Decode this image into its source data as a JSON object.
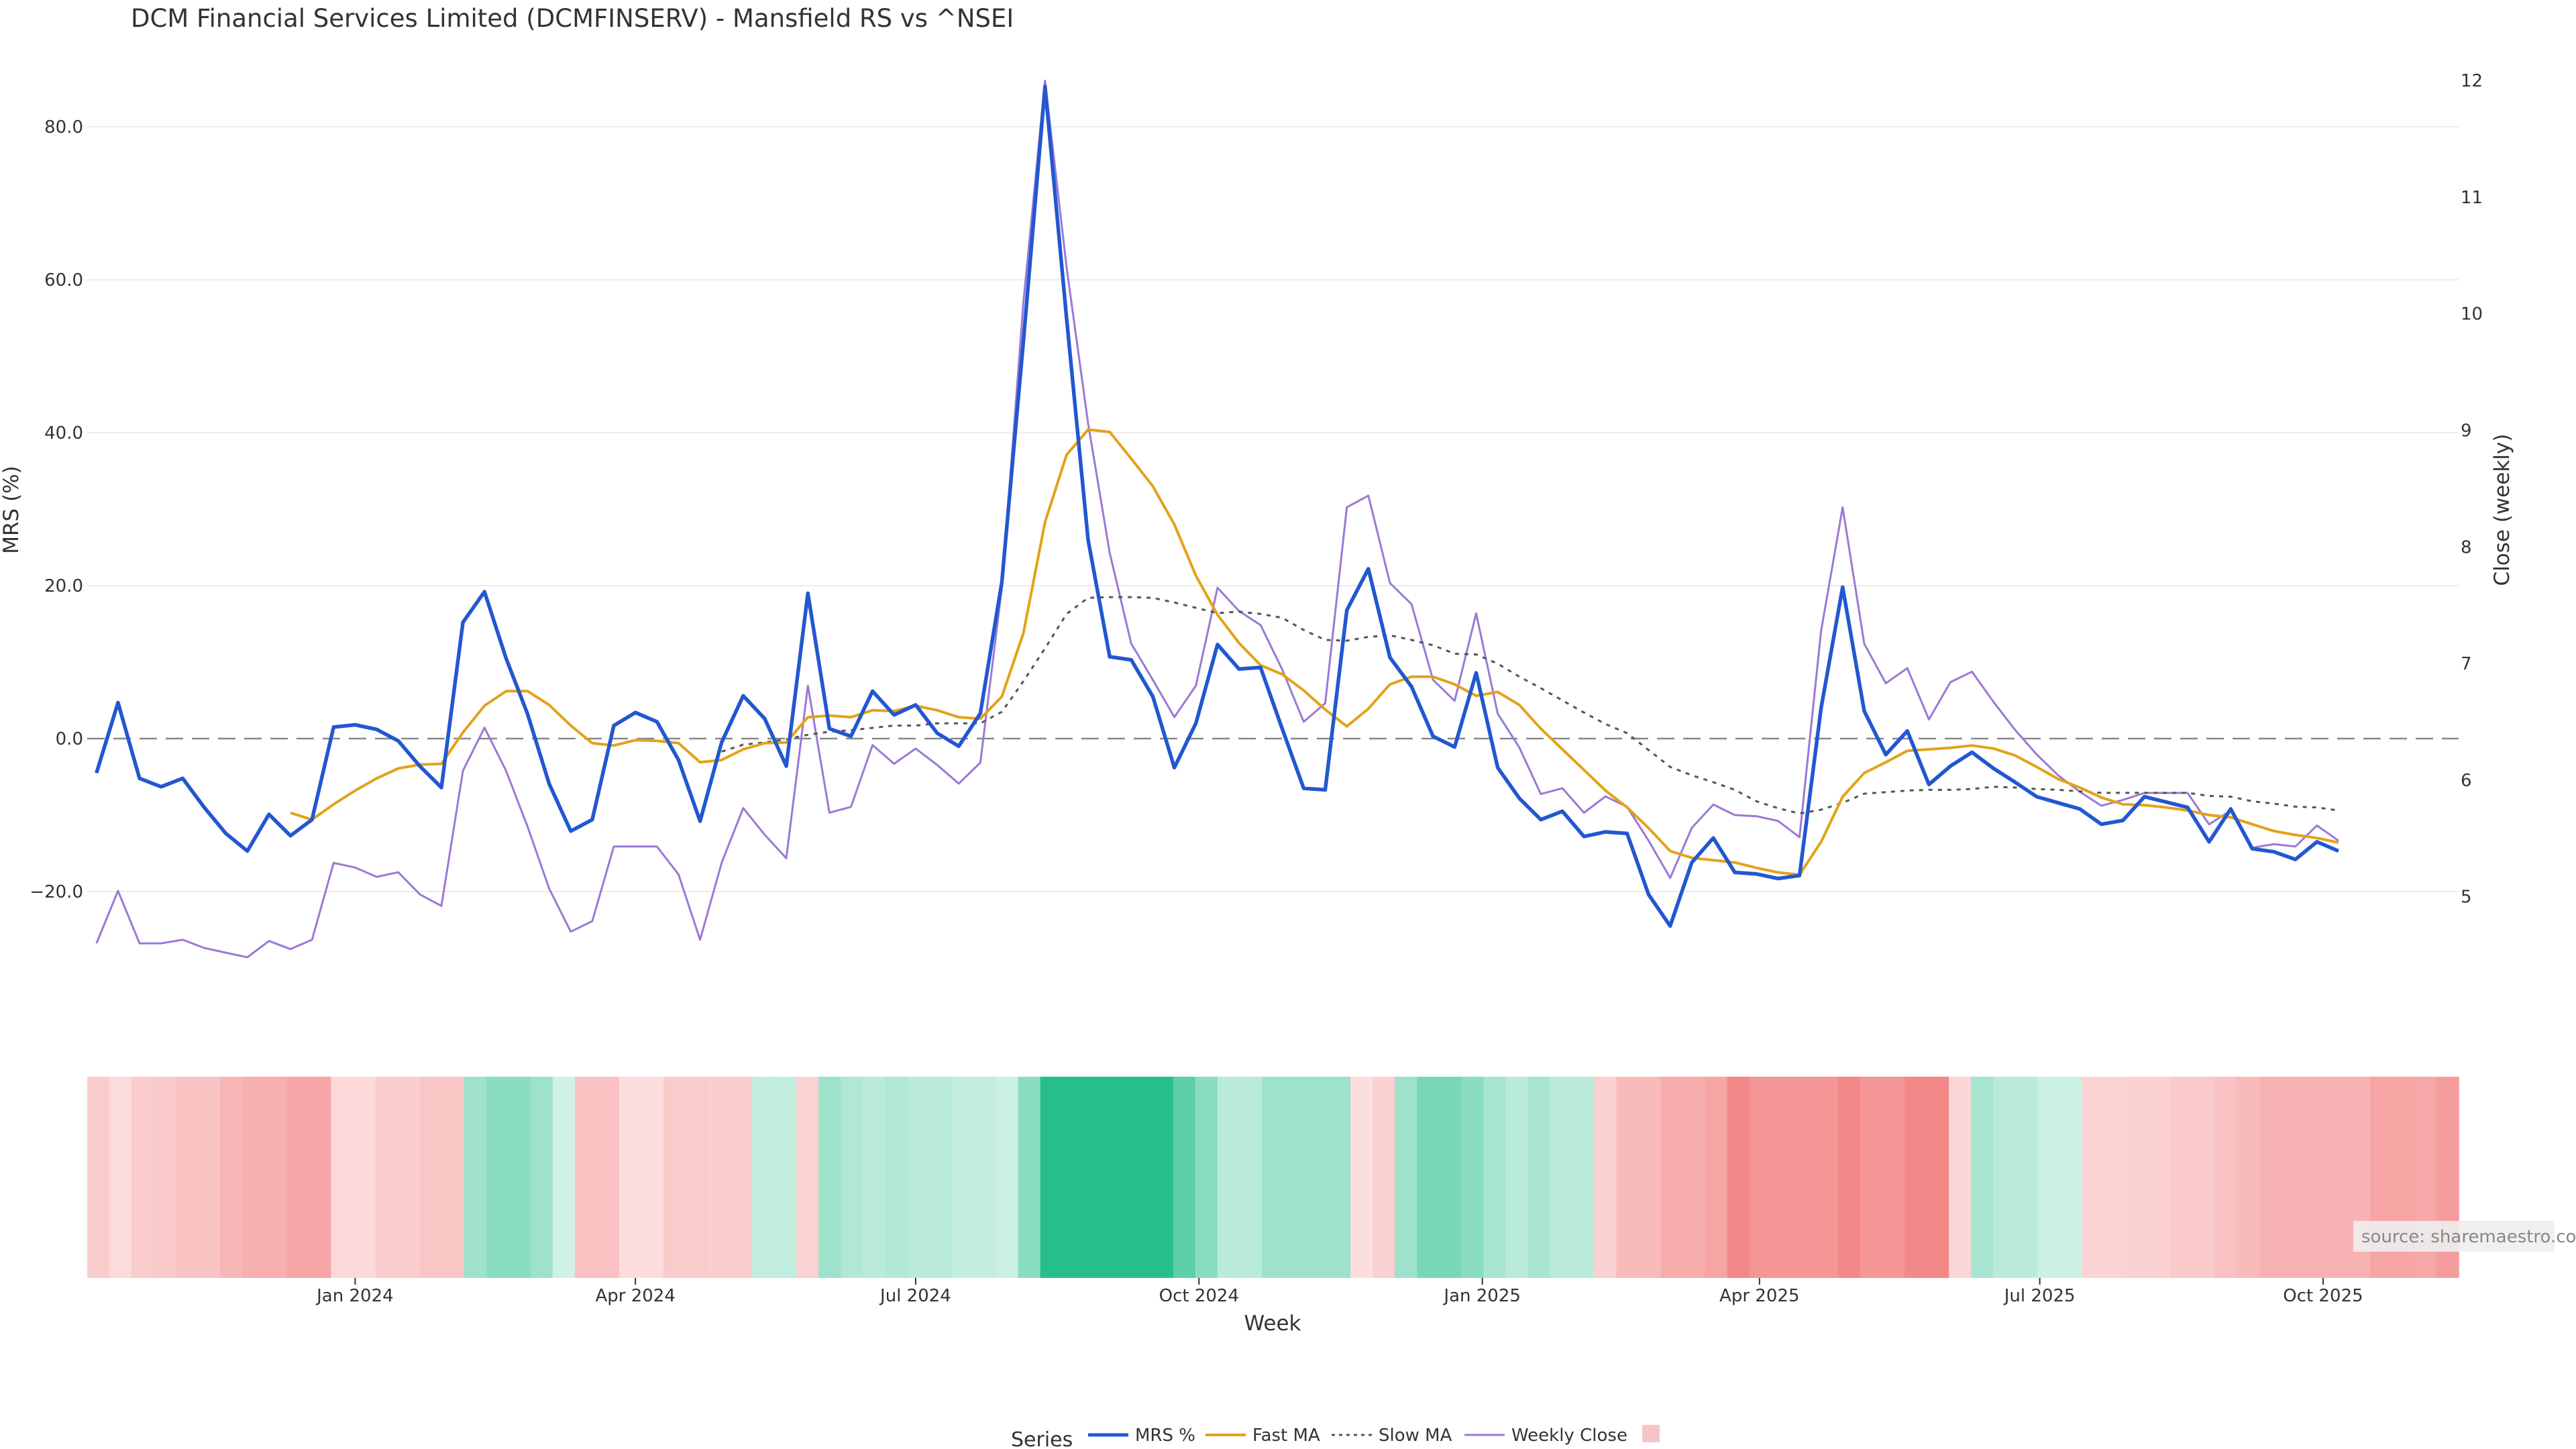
{
  "chart_data": {
    "type": "line",
    "title": "DCM Financial Services Limited (DCMFINSERV) - Mansfield RS vs ^NSEI",
    "xlabel": "Week",
    "ylabel": "MRS (%)",
    "y2label": "Close (weekly)",
    "ylim": [
      -35,
      90
    ],
    "y2lim": [
      4.06,
      12.26
    ],
    "xlim": [
      "2023-10-06",
      "2025-11-14"
    ],
    "x_ticks": [
      {
        "date": "2024-01-01",
        "label": "Jan 2024"
      },
      {
        "date": "2024-04-01",
        "label": "Apr 2024"
      },
      {
        "date": "2024-07-01",
        "label": "Jul 2024"
      },
      {
        "date": "2024-10-01",
        "label": "Oct 2024"
      },
      {
        "date": "2025-01-01",
        "label": "Jan 2025"
      },
      {
        "date": "2025-04-01",
        "label": "Apr 2025"
      },
      {
        "date": "2025-07-01",
        "label": "Jul 2025"
      },
      {
        "date": "2025-10-01",
        "label": "Oct 2025"
      }
    ],
    "y_ticks": [
      -20,
      0,
      20,
      40,
      60,
      80
    ],
    "y_tick_labels": [
      "−20.0",
      "0.0",
      "20.0",
      "40.0",
      "60.0",
      "80.0"
    ],
    "y2_ticks": [
      5,
      6,
      7,
      8,
      9,
      10,
      11,
      12
    ],
    "y2_tick_labels": [
      "5",
      "6",
      "7",
      "8",
      "9",
      "10",
      "11",
      "12"
    ],
    "start_date": "2023-10-09",
    "grid": true,
    "zero_line": true,
    "legend_title": "Series",
    "legend_placement": "bottom",
    "colors": {
      "mrs": "#2257d0",
      "fast_ma": "#e3a21a",
      "slow_ma": "#555555",
      "weekly_close": "#9b79d6",
      "zero_line": "#888888",
      "grid": "#e6e6e6",
      "legend_swatch": "#f6c6c6",
      "heat_pos": "#26bf8c",
      "heat_neg": "#ee5555"
    },
    "series": [
      {
        "name": "MRS %",
        "values": [
          -4.5,
          4.7,
          -5.2,
          -6.3,
          -5.2,
          -9.0,
          -12.4,
          -14.7,
          -9.9,
          -12.7,
          -10.6,
          1.5,
          1.8,
          1.2,
          -0.3,
          -3.6,
          -6.4,
          15.2,
          19.2,
          10.5,
          3.2,
          -5.9,
          -12.1,
          -10.6,
          1.7,
          3.4,
          2.2,
          -2.8,
          -10.8,
          -0.5,
          5.6,
          2.6,
          -3.6,
          19.0,
          1.3,
          0.3,
          6.2,
          3.1,
          4.4,
          0.7,
          -1.0,
          3.3,
          20.5,
          52.0,
          85.3,
          55.0,
          26.0,
          10.7,
          10.3,
          5.5,
          -3.8,
          2.0,
          12.3,
          9.1,
          9.3,
          1.3,
          -6.5,
          -6.7,
          16.8,
          22.2,
          10.6,
          6.8,
          0.3,
          -1.1,
          8.6,
          -3.8,
          -7.8,
          -10.6,
          -9.5,
          -12.8,
          -12.2,
          -12.4,
          -20.4,
          -24.5,
          -16.2,
          -13.0,
          -17.5,
          -17.7,
          -18.3,
          -17.9,
          4.0,
          19.8,
          3.6,
          -2.1,
          1.0,
          -6.0,
          -3.6,
          -1.8,
          -3.9,
          -5.7,
          -7.6,
          -8.4,
          -9.2,
          -11.2,
          -10.7,
          -7.6,
          -8.3,
          -9.0,
          -13.5,
          -9.2,
          -14.4,
          -14.8,
          -15.8,
          -13.5,
          -14.7
        ]
      },
      {
        "name": "Fast MA",
        "values": [
          null,
          null,
          null,
          null,
          null,
          null,
          null,
          null,
          null,
          -9.7,
          -10.6,
          -8.6,
          -6.8,
          -5.2,
          -3.9,
          -3.4,
          -3.3,
          0.8,
          4.3,
          6.2,
          6.2,
          4.4,
          1.7,
          -0.6,
          -0.9,
          -0.2,
          -0.3,
          -0.6,
          -3.1,
          -2.8,
          -1.4,
          -0.6,
          -0.5,
          2.8,
          3.0,
          2.8,
          3.7,
          3.6,
          4.3,
          3.7,
          2.8,
          2.6,
          5.5,
          13.8,
          28.3,
          37.1,
          40.4,
          40.1,
          36.6,
          33.0,
          28.0,
          21.3,
          16.2,
          12.5,
          9.6,
          8.4,
          6.3,
          3.8,
          1.6,
          3.9,
          7.1,
          8.1,
          8.1,
          7.1,
          5.6,
          6.1,
          4.4,
          1.3,
          -1.4,
          -4.1,
          -6.8,
          -9.0,
          -11.7,
          -14.7,
          -15.6,
          -15.9,
          -16.2,
          -16.9,
          -17.5,
          -17.8,
          -13.5,
          -7.6,
          -4.5,
          -3.1,
          -1.6,
          -1.4,
          -1.2,
          -0.9,
          -1.3,
          -2.2,
          -3.7,
          -5.3,
          -6.4,
          -7.7,
          -8.6,
          -8.7,
          -9.0,
          -9.4,
          -10.0,
          -10.3,
          -11.2,
          -12.1,
          -12.6,
          -13.0,
          -13.6
        ]
      },
      {
        "name": "Slow MA",
        "values": [
          null,
          null,
          null,
          null,
          null,
          null,
          null,
          null,
          null,
          null,
          null,
          null,
          null,
          null,
          null,
          null,
          null,
          null,
          null,
          null,
          null,
          null,
          null,
          null,
          null,
          null,
          null,
          null,
          null,
          -1.7,
          -0.8,
          -0.5,
          -0.1,
          0.5,
          0.9,
          1.1,
          1.4,
          1.7,
          1.7,
          2.0,
          2.0,
          2.0,
          3.5,
          7.5,
          11.8,
          16.3,
          18.4,
          18.5,
          18.5,
          18.4,
          17.8,
          17.1,
          16.4,
          16.6,
          16.3,
          15.8,
          14.2,
          12.9,
          12.8,
          13.3,
          13.5,
          12.9,
          12.2,
          11.1,
          11.0,
          9.8,
          8.1,
          6.6,
          5.0,
          3.4,
          1.9,
          0.7,
          -1.5,
          -3.7,
          -4.8,
          -5.7,
          -6.7,
          -8.2,
          -9.1,
          -9.8,
          -9.3,
          -8.4,
          -7.2,
          -7.0,
          -6.8,
          -6.7,
          -6.7,
          -6.6,
          -6.3,
          -6.4,
          -6.6,
          -6.7,
          -6.9,
          -7.1,
          -7.1,
          -7.1,
          -7.1,
          -7.1,
          -7.5,
          -7.6,
          -8.2,
          -8.5,
          -8.9,
          -9.0,
          -9.4
        ]
      },
      {
        "name": "Weekly Close",
        "values": [
          4.6,
          5.05,
          4.6,
          4.6,
          4.63,
          4.56,
          4.52,
          4.48,
          4.62,
          4.55,
          4.63,
          5.29,
          5.25,
          5.17,
          5.21,
          5.02,
          4.92,
          6.08,
          6.45,
          6.08,
          5.6,
          5.07,
          4.7,
          4.79,
          5.43,
          5.43,
          5.43,
          5.19,
          4.63,
          5.29,
          5.76,
          5.53,
          5.33,
          6.81,
          5.72,
          5.77,
          6.3,
          6.14,
          6.27,
          6.13,
          5.97,
          6.15,
          7.65,
          10.1,
          12.0,
          10.4,
          9.06,
          7.95,
          7.17,
          6.86,
          6.54,
          6.81,
          7.65,
          7.45,
          7.33,
          6.95,
          6.5,
          6.66,
          8.34,
          8.44,
          7.69,
          7.51,
          6.86,
          6.68,
          7.43,
          6.57,
          6.28,
          5.88,
          5.93,
          5.72,
          5.86,
          5.77,
          5.48,
          5.16,
          5.59,
          5.79,
          5.7,
          5.69,
          5.65,
          5.51,
          7.28,
          8.34,
          7.17,
          6.83,
          6.96,
          6.52,
          6.84,
          6.93,
          6.67,
          6.43,
          6.22,
          6.04,
          5.9,
          5.78,
          5.83,
          5.89,
          5.89,
          5.89,
          5.62,
          5.74,
          5.42,
          5.45,
          5.43,
          5.61,
          5.48
        ]
      }
    ],
    "heatmap_strip": {
      "description_values": [
        -3.4,
        -1.4,
        -3.6,
        -4.0,
        -4.8,
        -4.7,
        -6.5,
        -7.5,
        -7.5,
        -8.8,
        -8.8,
        -1.7,
        -1.7,
        -3.2,
        -3.2,
        -4.3,
        -4.3,
        7.0,
        9.0,
        9.0,
        7.0,
        1.5,
        -5.0,
        -5.0,
        -1.3,
        -1.3,
        -3.6,
        -3.6,
        -3.2,
        -3.2,
        3.2,
        3.2,
        -2.7,
        7.0,
        5.0,
        4.0,
        5.0,
        4.0,
        4.0,
        3.0,
        3.0,
        2.0,
        9.0,
        20.0,
        20.0,
        20.0,
        20.0,
        20.0,
        20.0,
        14.0,
        9.0,
        4.0,
        4.0,
        7.0,
        7.0,
        7.0,
        7.0,
        -1.0,
        -3.0,
        7.0,
        11.0,
        11.0,
        9.0,
        6.0,
        4.0,
        6.0,
        4.0,
        4.0,
        -3.0,
        -6.0,
        -6.0,
        -8.0,
        -8.0,
        -9.0,
        -13.0,
        -11.0,
        -11.0,
        -11.0,
        -11.0,
        -13.0,
        -11.0,
        -11.0,
        -13.0,
        -13.0,
        -2.0,
        6.0,
        4.0,
        4.0,
        2.0,
        2.0,
        -2.5,
        -2.5,
        -3.0,
        -3.0,
        -4.0,
        -4.0,
        -5.0,
        -6.0,
        -7.0,
        -7.0,
        -7.0,
        -7.0,
        -7.0,
        -9.0,
        -9.0,
        -8.5,
        -10.0
      ]
    },
    "source_label": "source: sharemaestro.com"
  }
}
